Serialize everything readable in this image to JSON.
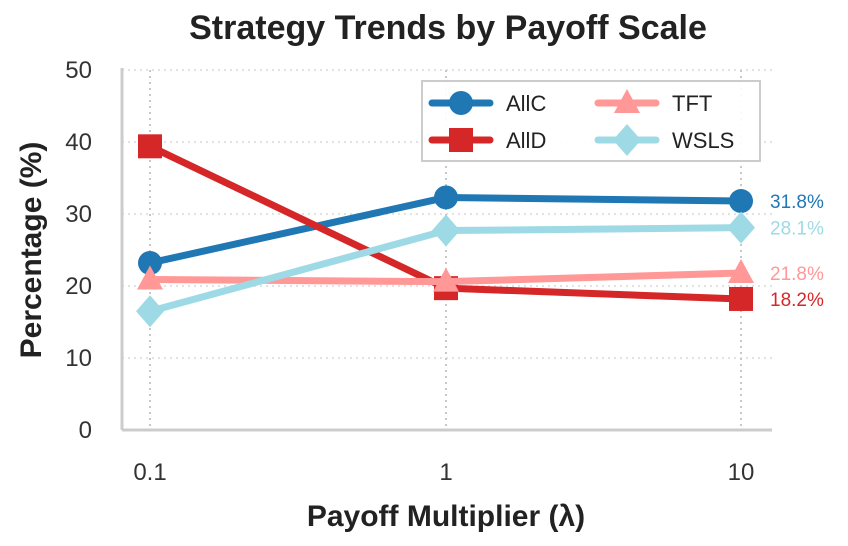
{
  "chart_data": {
    "type": "line",
    "title": "Strategy Trends by Payoff Scale",
    "xlabel": "Payoff Multiplier (λ)",
    "ylabel": "Percentage (%)",
    "x_scale": "log",
    "x": [
      0.1,
      1,
      10
    ],
    "x_tick_labels": [
      "0.1",
      "1",
      "10"
    ],
    "ylim": [
      0,
      50
    ],
    "y_ticks": [
      0,
      10,
      20,
      30,
      40,
      50
    ],
    "grid": true,
    "legend_position": "top-right",
    "series": [
      {
        "name": "AllC",
        "values": [
          23.2,
          32.3,
          31.8
        ],
        "color": "#1f77b4",
        "marker": "circle",
        "end_label": "31.8%"
      },
      {
        "name": "AllD",
        "values": [
          39.4,
          19.7,
          18.2
        ],
        "color": "#d62728",
        "marker": "square",
        "end_label": "18.2%"
      },
      {
        "name": "TFT",
        "values": [
          20.9,
          20.6,
          21.8
        ],
        "color": "#ff9896",
        "marker": "triangle",
        "end_label": "21.8%"
      },
      {
        "name": "WSLS",
        "values": [
          16.5,
          27.7,
          28.1
        ],
        "color": "#9edae5",
        "marker": "diamond",
        "end_label": "28.1%"
      }
    ]
  }
}
